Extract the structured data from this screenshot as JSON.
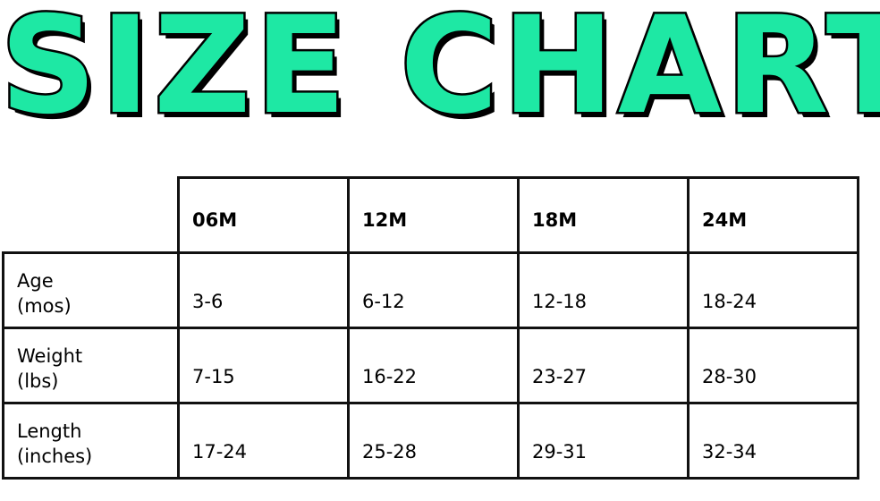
{
  "title": {
    "text": "SIZE CHART",
    "color": "#1EE8A4",
    "outline": "#000000"
  },
  "table": {
    "columns": [
      "06M",
      "12M",
      "18M",
      "24M"
    ],
    "rows": [
      {
        "label_line1": "Age",
        "label_line2": "(mos)",
        "values": [
          "3-6",
          "6-12",
          "12-18",
          "18-24"
        ]
      },
      {
        "label_line1": "Weight",
        "label_line2": "(lbs)",
        "values": [
          "7-15",
          "16-22",
          "23-27",
          "28-30"
        ]
      },
      {
        "label_line1": "Length",
        "label_line2": "(inches)",
        "values": [
          "17-24",
          "25-28",
          "29-31",
          "32-34"
        ]
      }
    ]
  }
}
